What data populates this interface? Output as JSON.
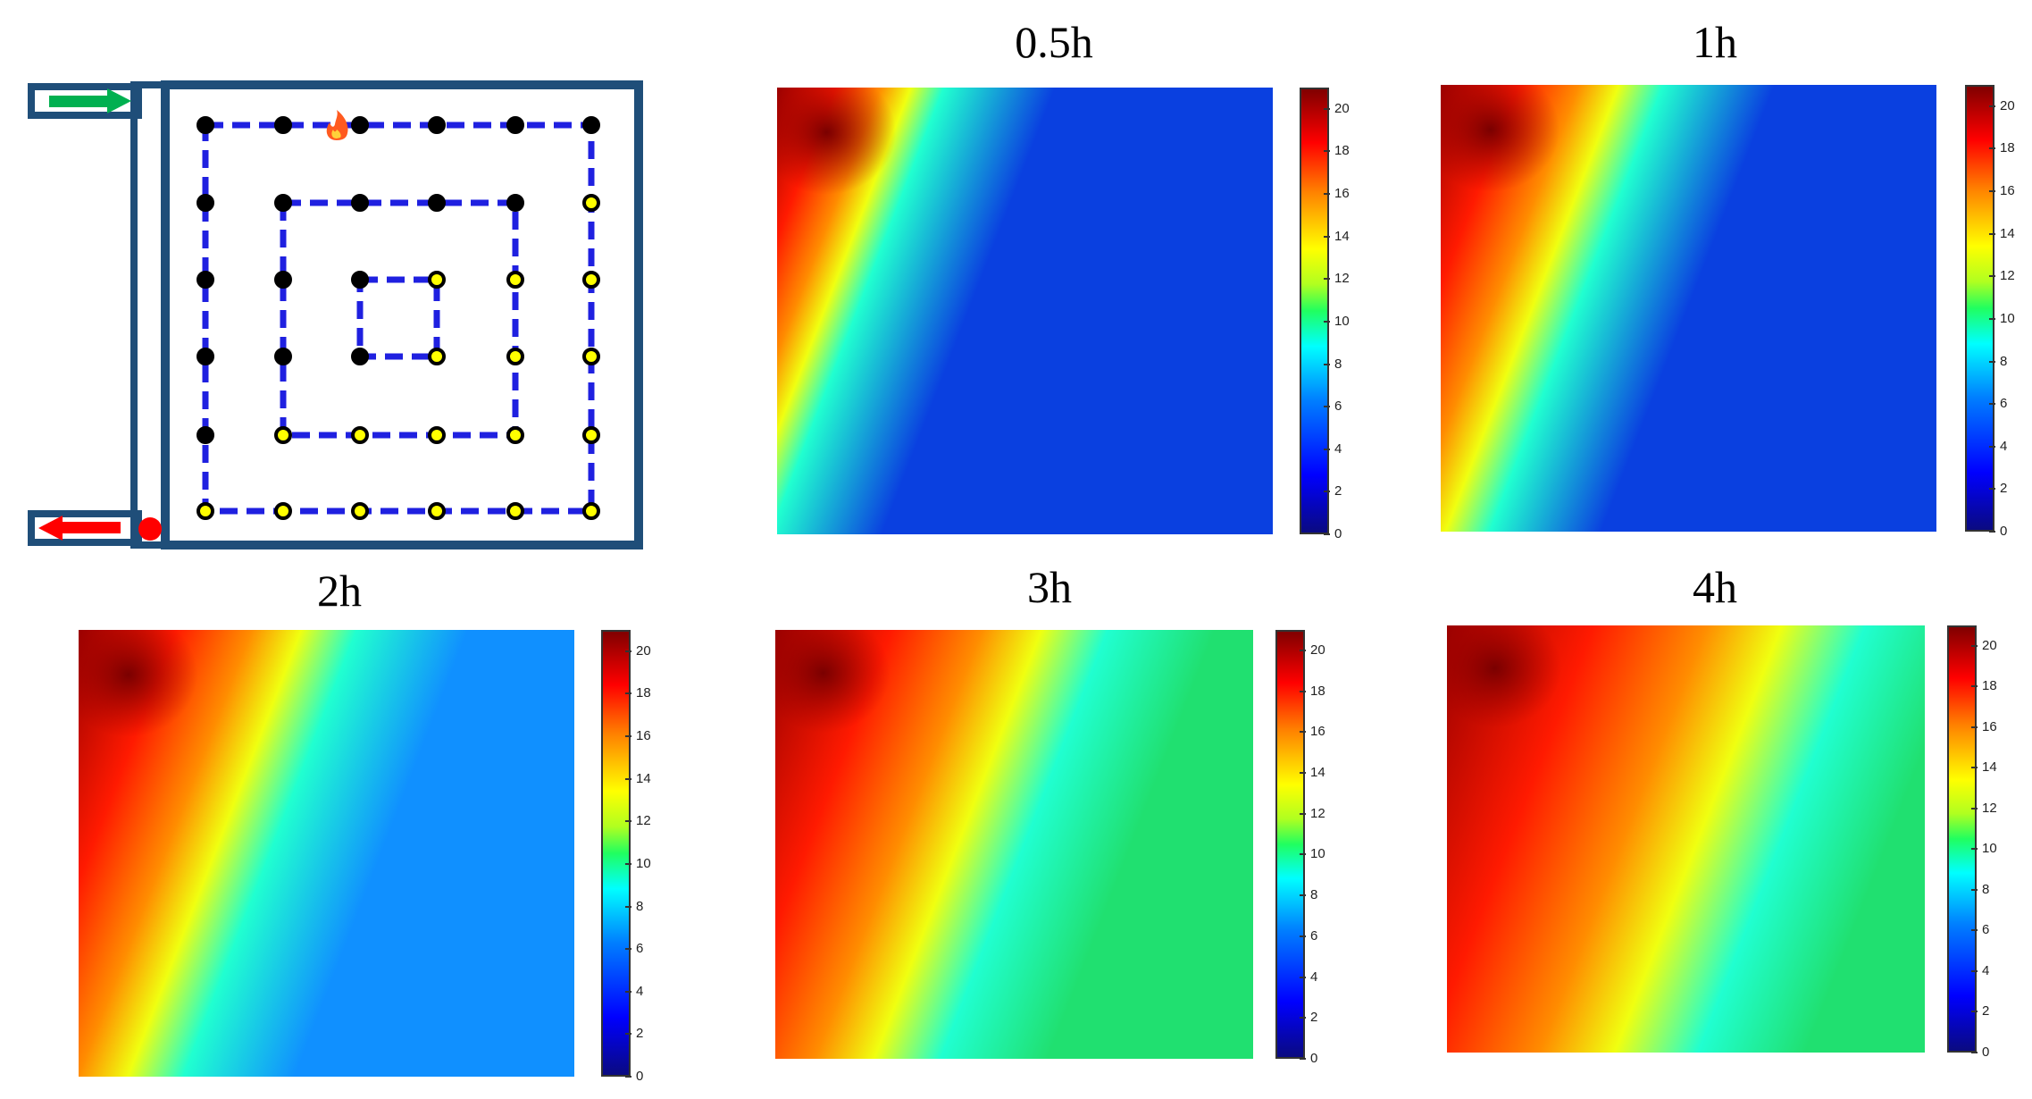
{
  "chart_data": [
    {
      "type": "diagram",
      "description_markers": [
        "inlet-arrow",
        "outlet-arrow",
        "fire-source",
        "sensor-grid"
      ]
    },
    {
      "type": "heatmap",
      "title": "0.5h",
      "colorbar": {
        "min": 0,
        "max": 21,
        "ticks": [
          0,
          2,
          4,
          6,
          8,
          10,
          12,
          14,
          16,
          18,
          20
        ]
      },
      "hot_extent": 0.3
    },
    {
      "type": "heatmap",
      "title": "1h",
      "colorbar": {
        "min": 0,
        "max": 21,
        "ticks": [
          0,
          2,
          4,
          6,
          8,
          10,
          12,
          14,
          16,
          18,
          20
        ]
      },
      "hot_extent": 0.4
    },
    {
      "type": "heatmap",
      "title": "2h",
      "colorbar": {
        "min": 0,
        "max": 21,
        "ticks": [
          0,
          2,
          4,
          6,
          8,
          10,
          12,
          14,
          16,
          18,
          20
        ]
      },
      "hot_extent": 0.5
    },
    {
      "type": "heatmap",
      "title": "3h",
      "colorbar": {
        "min": 0,
        "max": 21,
        "ticks": [
          0,
          2,
          4,
          6,
          8,
          10,
          12,
          14,
          16,
          18,
          20
        ]
      },
      "hot_extent": 0.62
    },
    {
      "type": "heatmap",
      "title": "4h",
      "colorbar": {
        "min": 0,
        "max": 21,
        "ticks": [
          0,
          2,
          4,
          6,
          8,
          10,
          12,
          14,
          16,
          18,
          20
        ]
      },
      "hot_extent": 0.78
    }
  ]
}
